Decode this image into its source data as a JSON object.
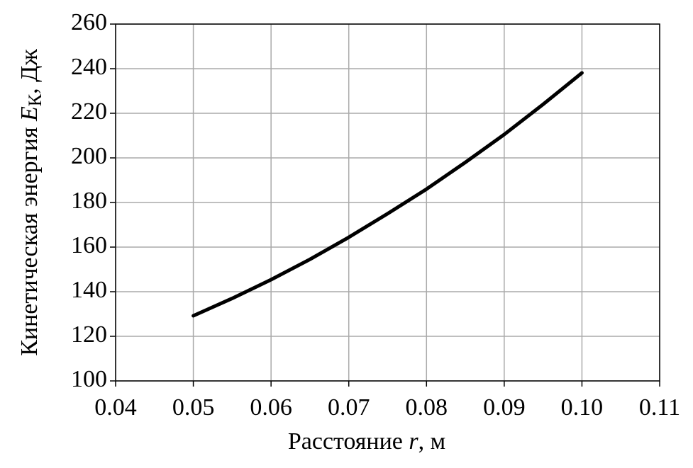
{
  "chart_data": {
    "type": "line",
    "x_label": [
      "Расстояние ",
      "r",
      ", м"
    ],
    "y_label": [
      "Кинетическая энергия ",
      "E",
      "К",
      ", Дж"
    ],
    "x": [
      0.05,
      0.055,
      0.06,
      0.065,
      0.07,
      0.075,
      0.08,
      0.085,
      0.09,
      0.095,
      0.1
    ],
    "values": [
      129.2,
      137,
      145.4,
      154.5,
      164.4,
      175,
      186,
      198,
      210.5,
      224,
      238.1
    ],
    "color": "#000000",
    "xlim": [
      0.04,
      0.11
    ],
    "xticks": [
      0.04,
      0.05,
      0.06,
      0.07,
      0.08,
      0.09,
      {
        "value": 0.1,
        "label": "0.10"
      },
      0.11
    ],
    "ylim": [
      100,
      260
    ],
    "yticks": [
      100,
      120,
      140,
      160,
      180,
      200,
      220,
      240,
      260
    ],
    "grid": true
  }
}
